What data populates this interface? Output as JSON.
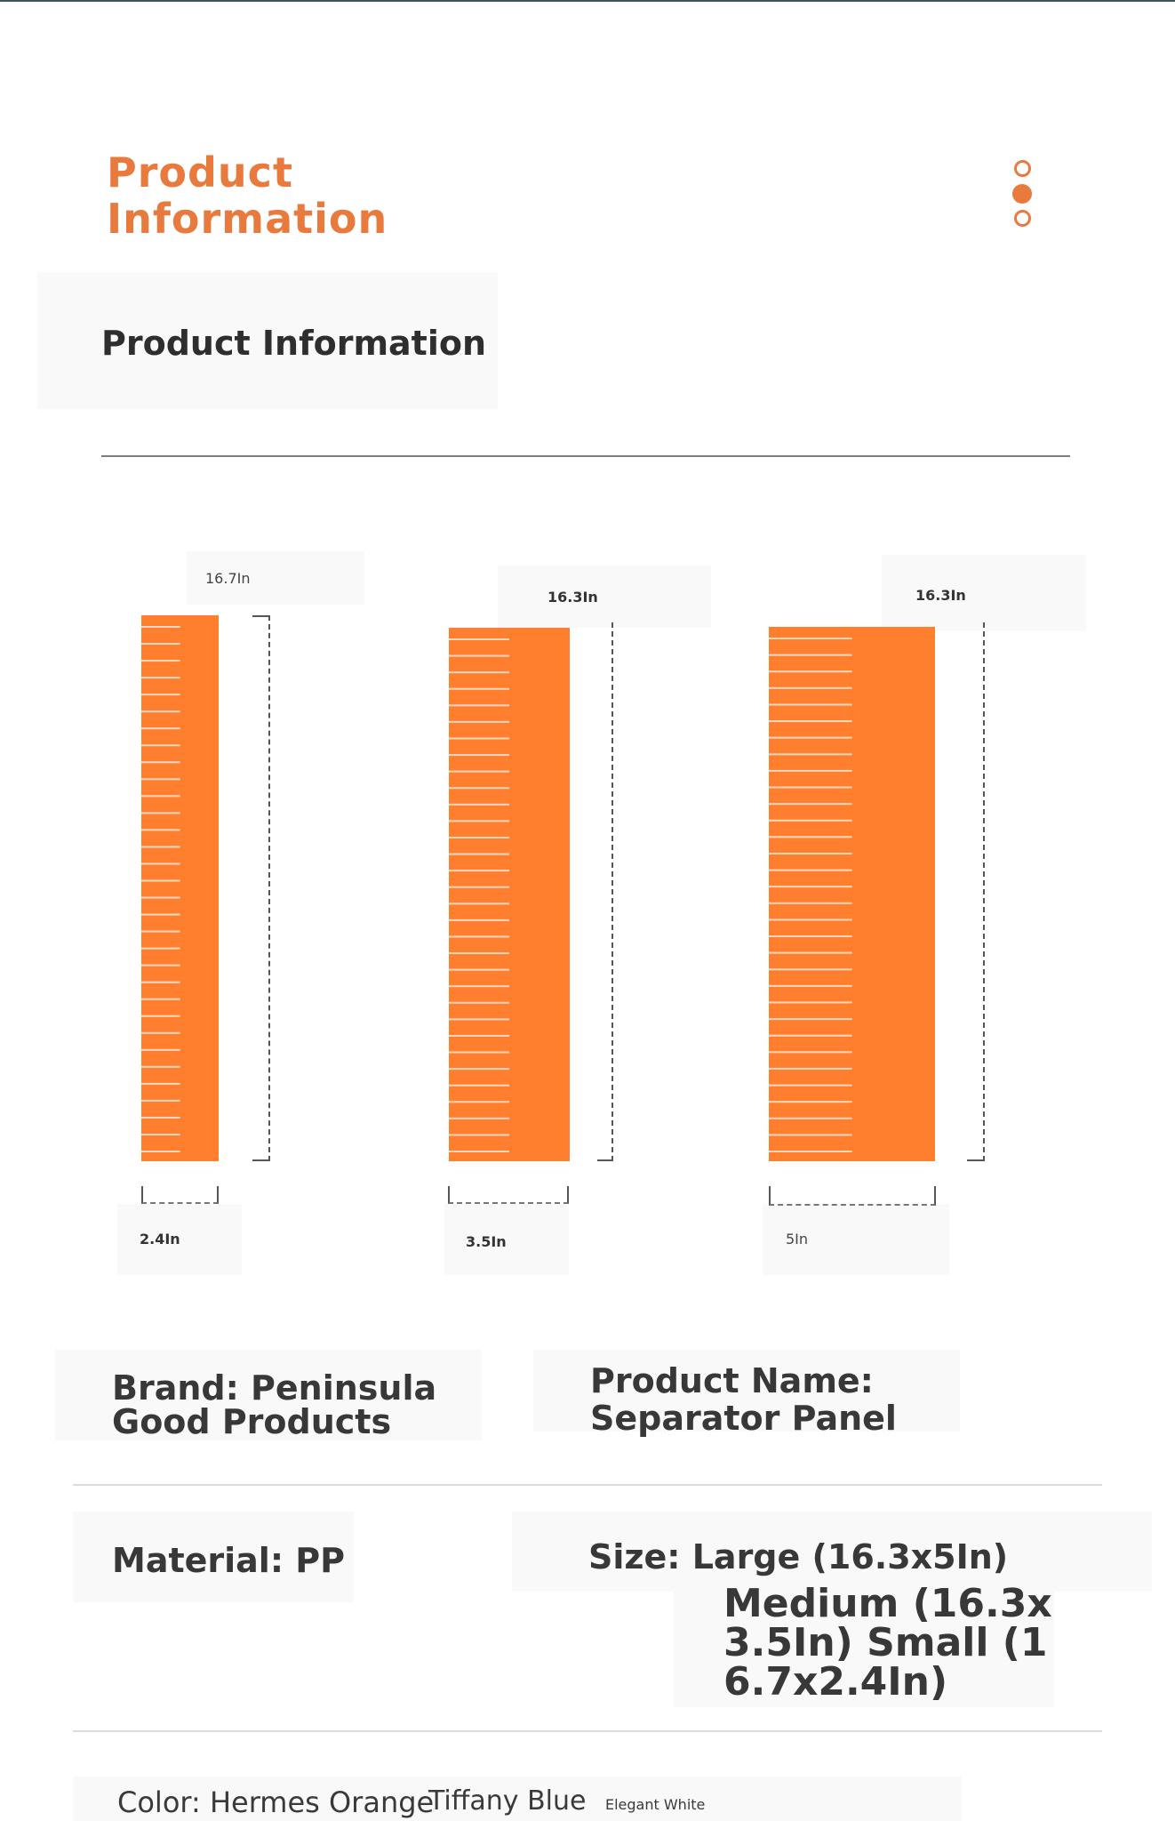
{
  "header": {
    "title_line1": "Product",
    "title_line2": "Information",
    "menu_icon": "three-dots-vertical-icon"
  },
  "section": {
    "title": "Product Information"
  },
  "diagram": {
    "panels": [
      {
        "height_label": "16.7In",
        "width_label": "2.4In"
      },
      {
        "height_label": "16.3In",
        "width_label": "3.5In"
      },
      {
        "height_label": "16.3In",
        "width_label": "5In"
      }
    ],
    "panel_color": "#ff7f2e",
    "slot_color": "#ffd9bf"
  },
  "specs": {
    "brand": "Brand: Peninsula Good Products",
    "product_name": "Product Name: Separator Panel",
    "material": "Material: PP",
    "size_line1": "Size: Large (16.3x5In)",
    "size_line2": "Medium (16.3x",
    "size_line3": "3.5In) Small (1",
    "size_line4": "6.7x2.4In)",
    "color_label": "Color: Hermes Orange",
    "color_2": "Tiffany Blue",
    "color_3": "Elegant White"
  },
  "colors": {
    "accent": "#e87a3e"
  }
}
